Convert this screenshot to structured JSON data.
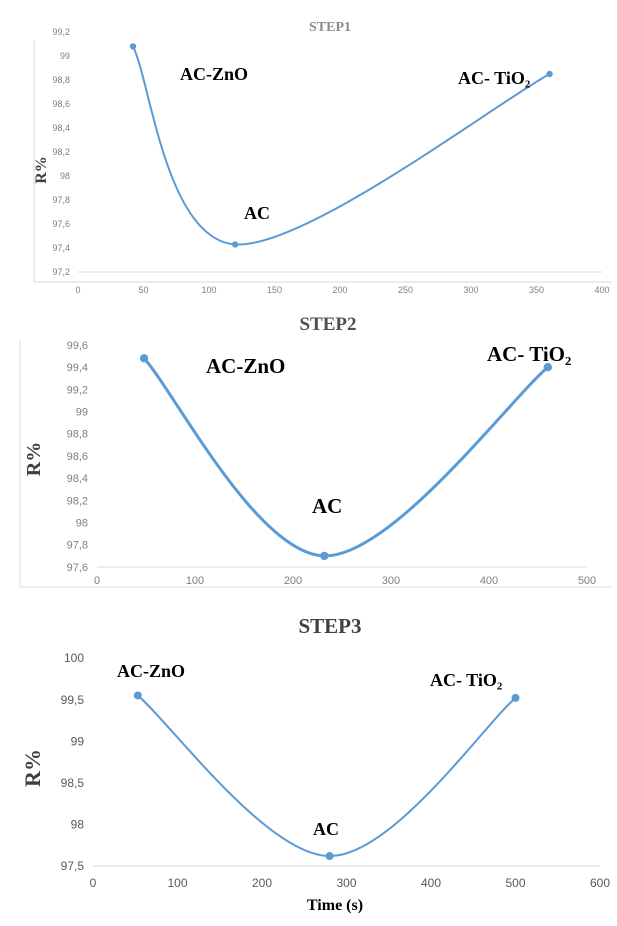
{
  "chart_data": [
    {
      "type": "line",
      "title": "STEP1",
      "ylabel": "R%",
      "xlabel": "",
      "xlim": [
        0,
        400
      ],
      "ylim": [
        97.2,
        99.2
      ],
      "xticks": [
        "0",
        "50",
        "100",
        "150",
        "200",
        "250",
        "300",
        "350",
        "400"
      ],
      "yticks": [
        "97,2",
        "97,4",
        "97,6",
        "97,8",
        "98",
        "98,2",
        "98,4",
        "98,6",
        "98,8",
        "99",
        "99,2"
      ],
      "series": [
        {
          "x": [
            42,
            120,
            360
          ],
          "y": [
            99.08,
            97.43,
            98.85
          ]
        }
      ],
      "annotations": [
        "AC-ZnO",
        "AC",
        "AC- TiO₂"
      ],
      "grid": false,
      "line_color": "#5b9bd5"
    },
    {
      "type": "line",
      "title": "STEP2",
      "ylabel": "R%",
      "xlabel": "",
      "xlim": [
        0,
        500
      ],
      "ylim": [
        97.6,
        99.6
      ],
      "xticks": [
        "0",
        "100",
        "200",
        "300",
        "400",
        "500"
      ],
      "yticks": [
        "97,6",
        "97,8",
        "98",
        "98,2",
        "98,4",
        "98,6",
        "98,8",
        "99",
        "99,2",
        "99,4",
        "99,6"
      ],
      "series": [
        {
          "x": [
            48,
            232,
            460
          ],
          "y": [
            99.48,
            97.7,
            99.4
          ]
        }
      ],
      "annotations": [
        "AC-ZnO",
        "AC",
        "AC- TiO₂"
      ],
      "grid": false,
      "line_color": "#5b9bd5"
    },
    {
      "type": "line",
      "title": "STEP3",
      "ylabel": "R%",
      "xlabel": "Time (s)",
      "xlim": [
        0,
        600
      ],
      "ylim": [
        97.5,
        100
      ],
      "xticks": [
        "0",
        "100",
        "200",
        "300",
        "400",
        "500",
        "600"
      ],
      "yticks": [
        "97,5",
        "98",
        "98,5",
        "99",
        "99,5",
        "100"
      ],
      "series": [
        {
          "x": [
            53,
            280,
            500
          ],
          "y": [
            99.55,
            97.62,
            99.52
          ]
        }
      ],
      "annotations": [
        "AC-ZnO",
        "AC",
        "AC- TiO₂"
      ],
      "grid": false,
      "line_color": "#5b9bd5"
    }
  ]
}
